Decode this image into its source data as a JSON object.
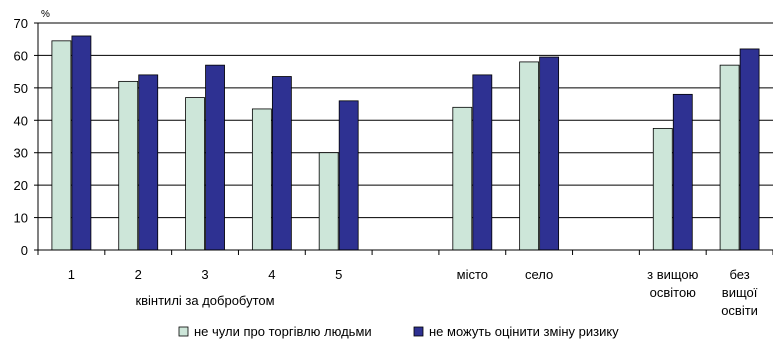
{
  "chart_data": {
    "type": "bar",
    "unit_label": "%",
    "ylim": [
      0,
      70
    ],
    "yticks": [
      0,
      10,
      20,
      30,
      40,
      50,
      60,
      70
    ],
    "grid": true,
    "legend_position": "bottom",
    "group_label": "квінтилі за добробутом",
    "categories": [
      [
        "1"
      ],
      [
        "2"
      ],
      [
        "3"
      ],
      [
        "4"
      ],
      [
        "5"
      ],
      [],
      [
        "місто"
      ],
      [
        "село"
      ],
      [],
      [
        "з вищою",
        "освітою"
      ],
      [
        "без",
        "вищої",
        "освіти"
      ]
    ],
    "series": [
      {
        "name": "не чули про торгівлю людьми",
        "color": "#cde6d9",
        "values": [
          64.5,
          52,
          47,
          43.5,
          30,
          null,
          44,
          58,
          null,
          37.5,
          57
        ]
      },
      {
        "name": "не можуть оцінити зміну ризику",
        "color": "#2e3192",
        "values": [
          66,
          54,
          57,
          53.5,
          46,
          null,
          54,
          59.5,
          null,
          48,
          62
        ]
      }
    ]
  }
}
